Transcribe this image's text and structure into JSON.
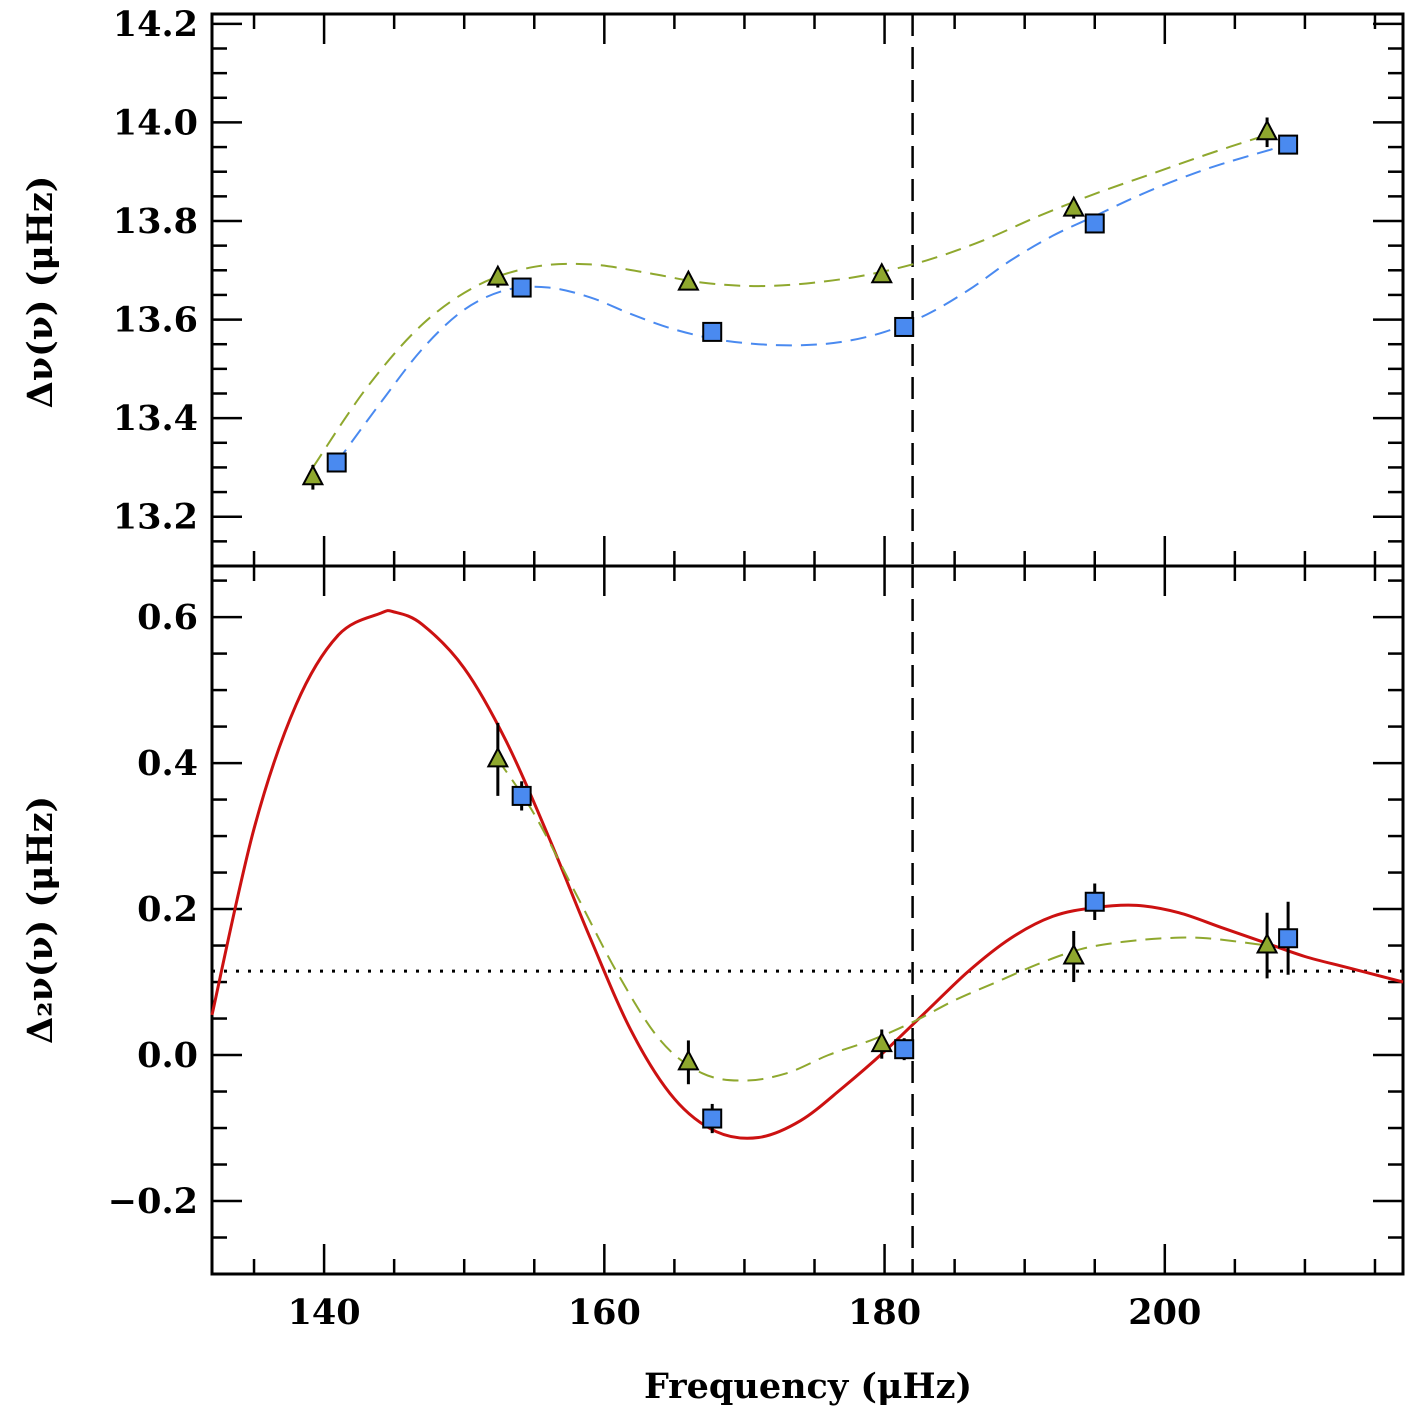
{
  "chart_data": [
    {
      "type": "scatter",
      "panel": "top",
      "ylabel": "Δν(ν) (μHz)",
      "xlabel": "",
      "xlim": [
        132,
        217
      ],
      "ylim": [
        13.1,
        14.22
      ],
      "yticks": [
        13.2,
        13.4,
        13.6,
        13.8,
        14.0,
        14.2
      ],
      "ytick_labels": [
        "13.2",
        "13.4",
        "13.6",
        "13.8",
        "14.0",
        "14.2"
      ],
      "grid": false,
      "vline_x": 182,
      "series": [
        {
          "marker": "triangle",
          "color": "#8fa82e",
          "x": [
            139.2,
            152.4,
            166.0,
            179.8,
            193.5,
            207.3
          ],
          "y": [
            13.28,
            13.685,
            13.675,
            13.69,
            13.825,
            13.98
          ],
          "yerr": [
            0.025,
            0.02,
            0.015,
            0.015,
            0.02,
            0.03
          ]
        },
        {
          "marker": "square",
          "color": "#4a8af0",
          "x": [
            140.9,
            154.1,
            167.7,
            181.4,
            195.0,
            208.8
          ],
          "y": [
            13.31,
            13.665,
            13.575,
            13.585,
            13.795,
            13.955
          ],
          "yerr": [
            0.015,
            0.015,
            0.015,
            0.015,
            0.015,
            0.015
          ]
        }
      ],
      "fit_curves": [
        {
          "style": "dashed",
          "color": "#8fa82e",
          "x": [
            139.2,
            143,
            147,
            151,
            155,
            159,
            163,
            167,
            171,
            175,
            179,
            183,
            187,
            191,
            195,
            199,
            203,
            207.3
          ],
          "y": [
            13.3,
            13.46,
            13.59,
            13.67,
            13.707,
            13.712,
            13.695,
            13.675,
            13.668,
            13.675,
            13.692,
            13.72,
            13.76,
            13.81,
            13.855,
            13.895,
            13.935,
            13.975
          ]
        },
        {
          "style": "dashed",
          "color": "#4a8af0",
          "x": [
            140.9,
            144,
            147,
            150,
            153,
            156,
            159,
            162,
            165,
            168,
            171,
            174,
            177,
            180,
            183,
            186,
            189,
            192,
            195,
            198,
            201,
            204,
            208.8
          ],
          "y": [
            13.31,
            13.43,
            13.54,
            13.62,
            13.66,
            13.665,
            13.645,
            13.61,
            13.58,
            13.56,
            13.55,
            13.548,
            13.555,
            13.575,
            13.61,
            13.66,
            13.72,
            13.77,
            13.81,
            13.85,
            13.885,
            13.915,
            13.955
          ]
        }
      ]
    },
    {
      "type": "scatter",
      "panel": "bottom",
      "ylabel": "Δ₂ν(ν) (μHz)",
      "xlabel": "Frequency (μHz)",
      "xlim": [
        132,
        217
      ],
      "ylim": [
        -0.3,
        0.67
      ],
      "xticks": [
        140,
        160,
        180,
        200
      ],
      "xtick_labels": [
        "140",
        "160",
        "180",
        "200"
      ],
      "yticks": [
        -0.2,
        0.0,
        0.2,
        0.4,
        0.6
      ],
      "ytick_labels": [
        "−0.2",
        "0.0",
        "0.2",
        "0.4",
        "0.6"
      ],
      "grid": false,
      "vline_x": 182,
      "hline_y": 0.115,
      "series": [
        {
          "marker": "triangle",
          "color": "#8fa82e",
          "x": [
            152.4,
            166.0,
            179.8,
            193.5,
            207.3
          ],
          "y": [
            0.405,
            -0.01,
            0.015,
            0.135,
            0.15
          ],
          "yerr": [
            0.05,
            0.03,
            0.02,
            0.035,
            0.045
          ]
        },
        {
          "marker": "square",
          "color": "#4a8af0",
          "x": [
            154.1,
            167.7,
            181.4,
            195.0,
            208.8
          ],
          "y": [
            0.355,
            -0.087,
            0.008,
            0.21,
            0.16
          ],
          "yerr": [
            0.02,
            0.02,
            0.015,
            0.025,
            0.05
          ]
        }
      ],
      "fit_curves": [
        {
          "style": "solid",
          "color": "#cc1111",
          "x": [
            132,
            135,
            138,
            141,
            144,
            145,
            147,
            150,
            153,
            156,
            159,
            162,
            165,
            168,
            171,
            174,
            177,
            180,
            183,
            186,
            189,
            192,
            195,
            198,
            201,
            204,
            207,
            210,
            213,
            217
          ],
          "y": [
            0.055,
            0.31,
            0.48,
            0.575,
            0.605,
            0.607,
            0.59,
            0.53,
            0.43,
            0.3,
            0.16,
            0.03,
            -0.06,
            -0.105,
            -0.113,
            -0.09,
            -0.045,
            0.005,
            0.06,
            0.115,
            0.16,
            0.19,
            0.202,
            0.205,
            0.195,
            0.175,
            0.155,
            0.135,
            0.12,
            0.1
          ]
        },
        {
          "style": "dashed",
          "color": "#8fa82e",
          "x": [
            152.4,
            155,
            158,
            161,
            164,
            167,
            170,
            173,
            176,
            179,
            182,
            185,
            188,
            191,
            194,
            197,
            200,
            203,
            207.3
          ],
          "y": [
            0.405,
            0.33,
            0.22,
            0.11,
            0.02,
            -0.025,
            -0.035,
            -0.025,
            0.0,
            0.02,
            0.045,
            0.075,
            0.1,
            0.125,
            0.145,
            0.155,
            0.16,
            0.16,
            0.15
          ]
        }
      ]
    }
  ]
}
